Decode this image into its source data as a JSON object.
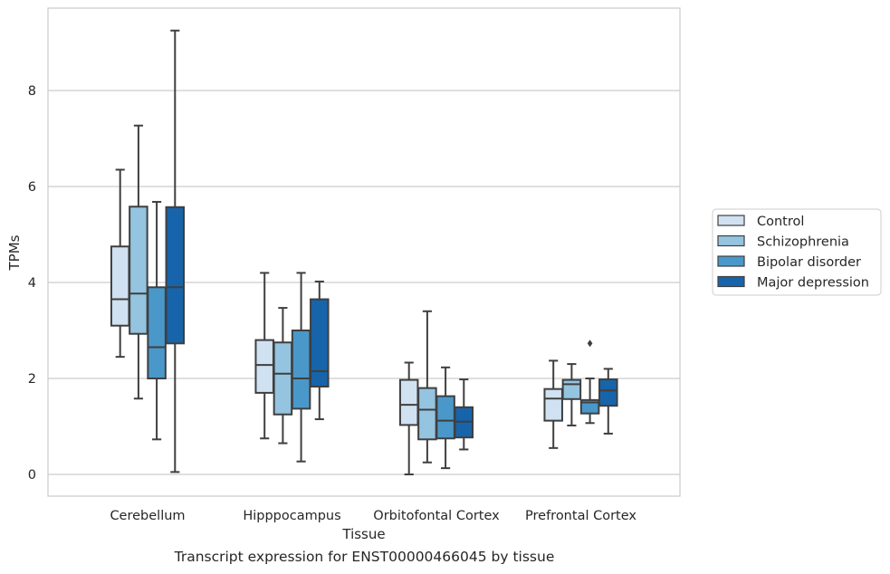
{
  "caption": "Transcript expression for ENST00000466045 by tissue",
  "chart_data": {
    "type": "box",
    "title": "",
    "xlabel": "Tissue",
    "ylabel": "TPMs",
    "ylim": [
      -0.45,
      9.9
    ],
    "yticks": [
      0,
      2,
      4,
      6,
      8
    ],
    "grid": "horizontal",
    "legend_position": "right",
    "categories": [
      "Cerebellum",
      "Hipppocampus",
      "Orbitofontal Cortex",
      "Prefrontal Cortex"
    ],
    "series": [
      {
        "name": "Control",
        "color": "#d0e1f2",
        "boxes": [
          {
            "whislo": 2.45,
            "q1": 3.1,
            "med": 3.65,
            "q3": 4.75,
            "whishi": 6.35,
            "fliers": []
          },
          {
            "whislo": 0.75,
            "q1": 1.7,
            "med": 2.28,
            "q3": 2.8,
            "whishi": 4.2,
            "fliers": []
          },
          {
            "whislo": 0.0,
            "q1": 1.03,
            "med": 1.45,
            "q3": 1.97,
            "whishi": 2.33,
            "fliers": []
          },
          {
            "whislo": 0.55,
            "q1": 1.12,
            "med": 1.58,
            "q3": 1.78,
            "whishi": 2.37,
            "fliers": []
          }
        ]
      },
      {
        "name": "Schizophrenia",
        "color": "#94c4df",
        "boxes": [
          {
            "whislo": 1.58,
            "q1": 2.93,
            "med": 3.77,
            "q3": 5.58,
            "whishi": 7.27,
            "fliers": []
          },
          {
            "whislo": 0.65,
            "q1": 1.25,
            "med": 2.1,
            "q3": 2.75,
            "whishi": 3.47,
            "fliers": []
          },
          {
            "whislo": 0.25,
            "q1": 0.73,
            "med": 1.35,
            "q3": 1.8,
            "whishi": 3.4,
            "fliers": []
          },
          {
            "whislo": 1.02,
            "q1": 1.57,
            "med": 1.88,
            "q3": 1.97,
            "whishi": 2.3,
            "fliers": []
          }
        ]
      },
      {
        "name": "Bipolar disorder",
        "color": "#4a98c9",
        "boxes": [
          {
            "whislo": 0.73,
            "q1": 2.0,
            "med": 2.65,
            "q3": 3.9,
            "whishi": 5.68,
            "fliers": []
          },
          {
            "whislo": 0.27,
            "q1": 1.37,
            "med": 2.0,
            "q3": 3.0,
            "whishi": 4.2,
            "fliers": []
          },
          {
            "whislo": 0.13,
            "q1": 0.75,
            "med": 1.12,
            "q3": 1.63,
            "whishi": 2.23,
            "fliers": []
          },
          {
            "whislo": 1.07,
            "q1": 1.27,
            "med": 1.5,
            "q3": 1.55,
            "whishi": 2.0,
            "fliers": [
              2.73
            ]
          }
        ]
      },
      {
        "name": "Major depression",
        "color": "#1764ab",
        "boxes": [
          {
            "whislo": 0.05,
            "q1": 2.73,
            "med": 3.9,
            "q3": 5.57,
            "whishi": 9.25,
            "fliers": []
          },
          {
            "whislo": 1.15,
            "q1": 1.83,
            "med": 2.15,
            "q3": 3.65,
            "whishi": 4.02,
            "fliers": []
          },
          {
            "whislo": 0.52,
            "q1": 0.77,
            "med": 1.1,
            "q3": 1.4,
            "whishi": 1.98,
            "fliers": []
          },
          {
            "whislo": 0.85,
            "q1": 1.43,
            "med": 1.75,
            "q3": 1.98,
            "whishi": 2.2,
            "fliers": []
          }
        ]
      }
    ]
  }
}
